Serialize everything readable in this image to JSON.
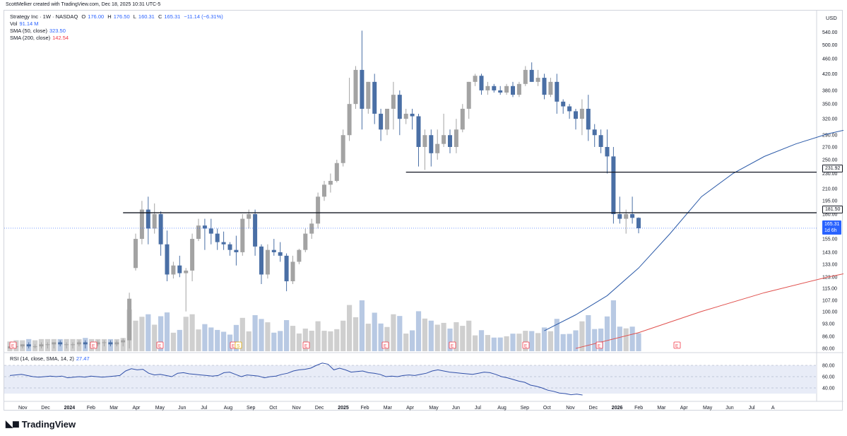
{
  "header": {
    "credit": "ScottMelker created with TradingView.com, Dec 18, 2025 10:31 UTC-5",
    "symbol": "Strategy Inc · 1W · NASDAQ",
    "open_label": "O",
    "open": "176.00",
    "high_label": "H",
    "high": "176.50",
    "low_label": "L",
    "low": "160.31",
    "close_label": "C",
    "close": "165.31",
    "change": "−11.14 (−6.31%)",
    "vol_label": "Vol",
    "vol": "91.14 M",
    "sma50_label": "SMA (50, close)",
    "sma50": "323.50",
    "sma200_label": "SMA (200, close)",
    "sma200": "142.54",
    "rsi_label": "RSI (14, close, SMA, 14, 2)",
    "rsi": "27.47",
    "currency": "USD"
  },
  "price_tags": {
    "level_high": "231.92",
    "level_low": "181.50",
    "last": "165.31",
    "countdown": "1d 6h"
  },
  "logo": "TradingView",
  "colors": {
    "up": "#a3a3a3",
    "down": "#4a6fa5",
    "sma50": "#2b5aa8",
    "sma200": "#e0504d",
    "volume_down": "#b8c9e3",
    "volume_up": "#cfcfcf",
    "rsi": "#2f4fa8"
  },
  "chart_data": {
    "type": "candlestick",
    "y_axis": {
      "scale": "log",
      "ticks": [
        80,
        86,
        93,
        100,
        107,
        115,
        123,
        133,
        143,
        155,
        165,
        180,
        195,
        210,
        230,
        250,
        270,
        290,
        320,
        350,
        380,
        420,
        460,
        500,
        540
      ]
    },
    "x_axis": {
      "ticks": [
        "Nov",
        "Dec",
        "2024",
        "Feb",
        "Mar",
        "Apr",
        "May",
        "Jun",
        "Jul",
        "Aug",
        "Sep",
        "Oct",
        "Nov",
        "Dec",
        "2025",
        "Feb",
        "Mar",
        "Apr",
        "May",
        "Jun",
        "Jul",
        "Aug",
        "Sep",
        "Oct",
        "Nov",
        "Dec",
        "2026",
        "Feb",
        "Mar",
        "Apr",
        "May",
        "Jun",
        "Jul",
        "A"
      ]
    },
    "candles_ohlc": [
      [
        80,
        81,
        80,
        81
      ],
      [
        81,
        82,
        80,
        81
      ],
      [
        81,
        82,
        80,
        82
      ],
      [
        82,
        83,
        80,
        81
      ],
      [
        81,
        82,
        80,
        81
      ],
      [
        81,
        83,
        80,
        82
      ],
      [
        82,
        83,
        80,
        82
      ],
      [
        82,
        83,
        80,
        83
      ],
      [
        83,
        84,
        81,
        82
      ],
      [
        82,
        83,
        80,
        82
      ],
      [
        82,
        83,
        80,
        82
      ],
      [
        82,
        84,
        81,
        83
      ],
      [
        83,
        84,
        80,
        82
      ],
      [
        82,
        83,
        80,
        82
      ],
      [
        82,
        84,
        81,
        83
      ],
      [
        83,
        84,
        81,
        83
      ],
      [
        83,
        84,
        81,
        82
      ],
      [
        82,
        84,
        81,
        83
      ],
      [
        83,
        85,
        81,
        84
      ],
      [
        84,
        112,
        80,
        108
      ],
      [
        130,
        160,
        128,
        155
      ],
      [
        155,
        195,
        150,
        185
      ],
      [
        185,
        200,
        150,
        165
      ],
      [
        165,
        192,
        160,
        180
      ],
      [
        180,
        183,
        140,
        150
      ],
      [
        150,
        163,
        120,
        125
      ],
      [
        125,
        135,
        122,
        132
      ],
      [
        132,
        140,
        123,
        126
      ],
      [
        126,
        130,
        100,
        128
      ],
      [
        128,
        160,
        120,
        155
      ],
      [
        155,
        175,
        153,
        168
      ],
      [
        168,
        175,
        145,
        165
      ],
      [
        165,
        175,
        150,
        160
      ],
      [
        160,
        165,
        145,
        152
      ],
      [
        152,
        162,
        145,
        150
      ],
      [
        150,
        152,
        140,
        145
      ],
      [
        145,
        158,
        132,
        143
      ],
      [
        143,
        180,
        140,
        175
      ],
      [
        175,
        185,
        165,
        180
      ],
      [
        180,
        185,
        140,
        148
      ],
      [
        148,
        150,
        118,
        125
      ],
      [
        125,
        150,
        122,
        145
      ],
      [
        145,
        155,
        140,
        143
      ],
      [
        143,
        152,
        135,
        140
      ],
      [
        140,
        142,
        113,
        120
      ],
      [
        120,
        140,
        118,
        135
      ],
      [
        135,
        146,
        133,
        145
      ],
      [
        145,
        165,
        143,
        160
      ],
      [
        160,
        175,
        155,
        170
      ],
      [
        170,
        205,
        165,
        200
      ],
      [
        200,
        220,
        195,
        215
      ],
      [
        215,
        230,
        205,
        220
      ],
      [
        220,
        250,
        218,
        245
      ],
      [
        245,
        300,
        240,
        290
      ],
      [
        290,
        410,
        280,
        350
      ],
      [
        350,
        440,
        340,
        430
      ],
      [
        430,
        545,
        300,
        340
      ],
      [
        340,
        400,
        330,
        400
      ],
      [
        400,
        420,
        310,
        330
      ],
      [
        330,
        340,
        280,
        300
      ],
      [
        300,
        340,
        290,
        340
      ],
      [
        340,
        400,
        300,
        370
      ],
      [
        370,
        380,
        290,
        320
      ],
      [
        320,
        340,
        310,
        330
      ],
      [
        330,
        340,
        300,
        325
      ],
      [
        325,
        330,
        240,
        270
      ],
      [
        270,
        300,
        235,
        290
      ],
      [
        290,
        300,
        240,
        260
      ],
      [
        260,
        300,
        250,
        275
      ],
      [
        275,
        330,
        270,
        290
      ],
      [
        290,
        300,
        260,
        270
      ],
      [
        270,
        320,
        260,
        300
      ],
      [
        300,
        350,
        295,
        340
      ],
      [
        340,
        400,
        320,
        400
      ],
      [
        400,
        420,
        390,
        415
      ],
      [
        415,
        420,
        370,
        380
      ],
      [
        380,
        400,
        370,
        390
      ],
      [
        390,
        395,
        375,
        380
      ],
      [
        380,
        390,
        370,
        375
      ],
      [
        375,
        395,
        370,
        390
      ],
      [
        390,
        400,
        365,
        370
      ],
      [
        370,
        400,
        365,
        395
      ],
      [
        395,
        440,
        390,
        430
      ],
      [
        430,
        450,
        400,
        400
      ],
      [
        400,
        430,
        390,
        410
      ],
      [
        410,
        420,
        360,
        370
      ],
      [
        370,
        410,
        365,
        400
      ],
      [
        400,
        420,
        330,
        355
      ],
      [
        355,
        360,
        330,
        345
      ],
      [
        345,
        350,
        320,
        335
      ],
      [
        335,
        340,
        300,
        320
      ],
      [
        320,
        360,
        290,
        340
      ],
      [
        340,
        370,
        280,
        300
      ],
      [
        300,
        310,
        270,
        290
      ],
      [
        290,
        300,
        260,
        270
      ],
      [
        270,
        300,
        230,
        255
      ],
      [
        255,
        270,
        170,
        180
      ],
      [
        180,
        200,
        170,
        175
      ],
      [
        175,
        185,
        160,
        180
      ],
      [
        180,
        200,
        170,
        176
      ],
      [
        176,
        176.5,
        160.31,
        165.31
      ]
    ],
    "sma50_points": [
      [
        85,
        89
      ],
      [
        90,
        98
      ],
      [
        95,
        110
      ],
      [
        100,
        130
      ],
      [
        105,
        160
      ],
      [
        110,
        200
      ],
      [
        115,
        230
      ],
      [
        120,
        255
      ],
      [
        125,
        275
      ],
      [
        130,
        292
      ],
      [
        135,
        305
      ],
      [
        140,
        315
      ],
      [
        145,
        322
      ],
      [
        150,
        325
      ],
      [
        155,
        323.5
      ]
    ],
    "sma200_points": [
      [
        90,
        80
      ],
      [
        100,
        88
      ],
      [
        110,
        100
      ],
      [
        120,
        112
      ],
      [
        130,
        123
      ],
      [
        140,
        133
      ],
      [
        150,
        141
      ],
      [
        155,
        142.54
      ]
    ],
    "horizontal_levels": [
      231.92,
      181.5
    ],
    "rsi_ticks": [
      40,
      60,
      80
    ],
    "rsi_values": [
      62,
      63,
      64,
      62,
      60,
      59,
      60,
      61,
      60,
      61,
      58,
      59,
      60,
      59,
      61,
      60,
      59,
      60,
      61,
      62,
      70,
      74,
      72,
      73,
      66,
      63,
      64,
      62,
      60,
      66,
      67,
      65,
      64,
      63,
      62,
      61,
      62,
      67,
      68,
      64,
      60,
      63,
      62,
      61,
      58,
      60,
      61,
      64,
      66,
      70,
      72,
      73,
      75,
      80,
      84,
      82,
      72,
      75,
      72,
      68,
      69,
      70,
      67,
      66,
      64,
      60,
      61,
      60,
      62,
      63,
      62,
      64,
      66,
      70,
      72,
      70,
      68,
      67,
      66,
      65,
      64,
      66,
      68,
      67,
      64,
      60,
      58,
      55,
      52,
      50,
      45,
      43,
      40,
      36,
      34,
      31,
      30,
      28,
      29,
      27.47
    ],
    "earnings_markers": [
      "E",
      "E",
      "E",
      "E",
      "S",
      "E",
      "E",
      "E",
      "E",
      "E",
      "E"
    ]
  }
}
